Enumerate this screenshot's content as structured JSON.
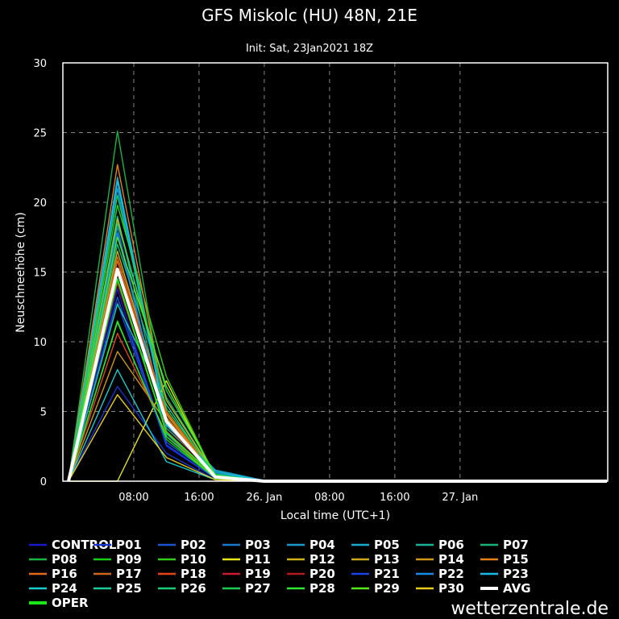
{
  "chart_data": {
    "type": "line",
    "title": "GFS Miskolc (HU) 48N, 21E",
    "subtitle": "Init: Sat, 23Jan2021 18Z",
    "xlabel": "Local time (UTC+1)",
    "ylabel": "Neuschneehöhe (cm)",
    "x": [
      0,
      6,
      12,
      18,
      24,
      30,
      36,
      42,
      48,
      54,
      60,
      66
    ],
    "xlim": [
      0,
      66
    ],
    "xticks": [
      {
        "at": 8,
        "label": "08:00"
      },
      {
        "at": 16,
        "label": "16:00"
      },
      {
        "at": 24,
        "label": "26. Jan"
      },
      {
        "at": 32,
        "label": "08:00"
      },
      {
        "at": 40,
        "label": "16:00"
      },
      {
        "at": 48,
        "label": "27. Jan"
      }
    ],
    "ylim": [
      0,
      30
    ],
    "yticks": [
      "0",
      "5",
      "10",
      "15",
      "20",
      "25",
      "30"
    ],
    "grid": true,
    "legend_position": "bottom",
    "series": [
      {
        "name": "CONTROL",
        "color": "#1a1acc",
        "values": [
          0,
          13.8,
          2.5,
          0.2,
          0,
          0,
          0,
          0,
          0,
          0,
          0,
          0
        ]
      },
      {
        "name": "P01",
        "color": "#1a33cc",
        "values": [
          0,
          6.8,
          2.0,
          0.1,
          0,
          0,
          0,
          0,
          0,
          0,
          0,
          0
        ]
      },
      {
        "name": "P02",
        "color": "#1a55cc",
        "values": [
          0,
          13.2,
          2.8,
          0.3,
          0,
          0,
          0,
          0,
          0,
          0,
          0,
          0
        ]
      },
      {
        "name": "P03",
        "color": "#1a77cc",
        "values": [
          0,
          18.2,
          3.2,
          0.4,
          0,
          0,
          0,
          0,
          0,
          0,
          0,
          0
        ]
      },
      {
        "name": "P04",
        "color": "#1a99cc",
        "values": [
          0,
          21.0,
          4.1,
          0.6,
          0,
          0,
          0,
          0,
          0,
          0,
          0,
          0
        ]
      },
      {
        "name": "P05",
        "color": "#1aaacc",
        "values": [
          0,
          21.8,
          4.4,
          0.8,
          0.05,
          0,
          0,
          0,
          0,
          0,
          0,
          0
        ]
      },
      {
        "name": "P06",
        "color": "#1ab099",
        "values": [
          0,
          19.0,
          3.8,
          0.5,
          0,
          0,
          0,
          0,
          0,
          0,
          0,
          0
        ]
      },
      {
        "name": "P07",
        "color": "#1ab377",
        "values": [
          0,
          17.0,
          6.0,
          0.4,
          0,
          0,
          0,
          0,
          0,
          0,
          0,
          0
        ]
      },
      {
        "name": "P08",
        "color": "#1ab344",
        "values": [
          0,
          25.1,
          4.5,
          0.3,
          0,
          0,
          0,
          0,
          0,
          0,
          0,
          0
        ]
      },
      {
        "name": "P09",
        "color": "#1acc1a",
        "values": [
          0,
          11.5,
          3.0,
          0.2,
          0,
          0,
          0,
          0,
          0,
          0,
          0,
          0
        ]
      },
      {
        "name": "P10",
        "color": "#33cc1a",
        "values": [
          0,
          19.8,
          7.5,
          0.3,
          0,
          0,
          0,
          0,
          0,
          0,
          0,
          0
        ]
      },
      {
        "name": "P11",
        "color": "#e6e61a",
        "values": [
          0,
          0,
          7.2,
          0.2,
          0,
          0,
          0,
          0,
          0,
          0,
          0,
          0
        ]
      },
      {
        "name": "P12",
        "color": "#ccb31a",
        "values": [
          0,
          18.8,
          5.8,
          0.4,
          0,
          0,
          0,
          0,
          0,
          0,
          0,
          0
        ]
      },
      {
        "name": "P13",
        "color": "#cca81a",
        "values": [
          0,
          16.5,
          4.8,
          0.3,
          0,
          0,
          0,
          0,
          0,
          0,
          0,
          0
        ]
      },
      {
        "name": "P14",
        "color": "#cc991a",
        "values": [
          0,
          9.3,
          4.2,
          0.2,
          0,
          0,
          0,
          0,
          0,
          0,
          0,
          0
        ]
      },
      {
        "name": "P15",
        "color": "#e6801a",
        "values": [
          0,
          22.7,
          5.0,
          0.4,
          0,
          0,
          0,
          0,
          0,
          0,
          0,
          0
        ]
      },
      {
        "name": "P16",
        "color": "#e6661a",
        "values": [
          0,
          15.8,
          4.6,
          0.3,
          0,
          0,
          0,
          0,
          0,
          0,
          0,
          0
        ]
      },
      {
        "name": "P17",
        "color": "#cc661a",
        "values": [
          0,
          16.1,
          4.9,
          0.4,
          0,
          0,
          0,
          0,
          0,
          0,
          0,
          0
        ]
      },
      {
        "name": "P18",
        "color": "#e6441a",
        "values": [
          0,
          10.6,
          3.4,
          0.2,
          0,
          0,
          0,
          0,
          0,
          0,
          0,
          0
        ]
      },
      {
        "name": "P19",
        "color": "#cc1a33",
        "values": [
          0,
          14.2,
          3.6,
          0.3,
          0,
          0,
          0,
          0,
          0,
          0,
          0,
          0
        ]
      },
      {
        "name": "P20",
        "color": "#b31a1a",
        "values": [
          0,
          15.0,
          4.0,
          0.3,
          0,
          0,
          0,
          0,
          0,
          0,
          0,
          0
        ]
      },
      {
        "name": "P21",
        "color": "#1a44e6",
        "values": [
          0,
          12.8,
          2.6,
          0.2,
          0,
          0,
          0,
          0,
          0,
          0,
          0,
          0
        ]
      },
      {
        "name": "P22",
        "color": "#1a88e6",
        "values": [
          0,
          17.8,
          3.4,
          0.4,
          0,
          0,
          0,
          0,
          0,
          0,
          0,
          0
        ]
      },
      {
        "name": "P23",
        "color": "#1abbe6",
        "values": [
          0,
          21.5,
          4.0,
          0.7,
          0,
          0,
          0,
          0,
          0,
          0,
          0,
          0
        ]
      },
      {
        "name": "P24",
        "color": "#1acccc",
        "values": [
          0,
          8.0,
          1.4,
          0.1,
          0,
          0,
          0,
          0,
          0,
          0,
          0,
          0
        ]
      },
      {
        "name": "P25",
        "color": "#1acc99",
        "values": [
          0,
          12.7,
          5.5,
          0.3,
          0,
          0,
          0,
          0,
          0,
          0,
          0,
          0
        ]
      },
      {
        "name": "P26",
        "color": "#1acc77",
        "values": [
          0,
          18.5,
          6.5,
          0.5,
          0,
          0,
          0,
          0,
          0,
          0,
          0,
          0
        ]
      },
      {
        "name": "P27",
        "color": "#1acc55",
        "values": [
          0,
          20.5,
          5.2,
          0.5,
          0,
          0,
          0,
          0,
          0,
          0,
          0,
          0
        ]
      },
      {
        "name": "P28",
        "color": "#33e633",
        "values": [
          0,
          11.4,
          3.2,
          0.2,
          0,
          0,
          0,
          0,
          0,
          0,
          0,
          0
        ]
      },
      {
        "name": "P29",
        "color": "#55e61a",
        "values": [
          0,
          17.5,
          6.8,
          0.4,
          0,
          0,
          0,
          0,
          0,
          0,
          0,
          0
        ]
      },
      {
        "name": "P30",
        "color": "#e6cc1a",
        "values": [
          0,
          6.2,
          1.7,
          0.1,
          0,
          0,
          0,
          0,
          0,
          0,
          0,
          0
        ]
      },
      {
        "name": "AVG",
        "color": "#ffffff",
        "values": [
          0,
          15.2,
          4.3,
          0.3,
          0,
          0,
          0,
          0,
          0,
          0,
          0,
          0
        ]
      },
      {
        "name": "OPER",
        "color": "#1ae61a",
        "values": [
          0,
          14.5,
          3.5,
          0.3,
          0,
          0,
          0,
          0,
          0,
          0,
          0,
          0
        ]
      }
    ]
  },
  "brand": "wetterzentrale.de"
}
